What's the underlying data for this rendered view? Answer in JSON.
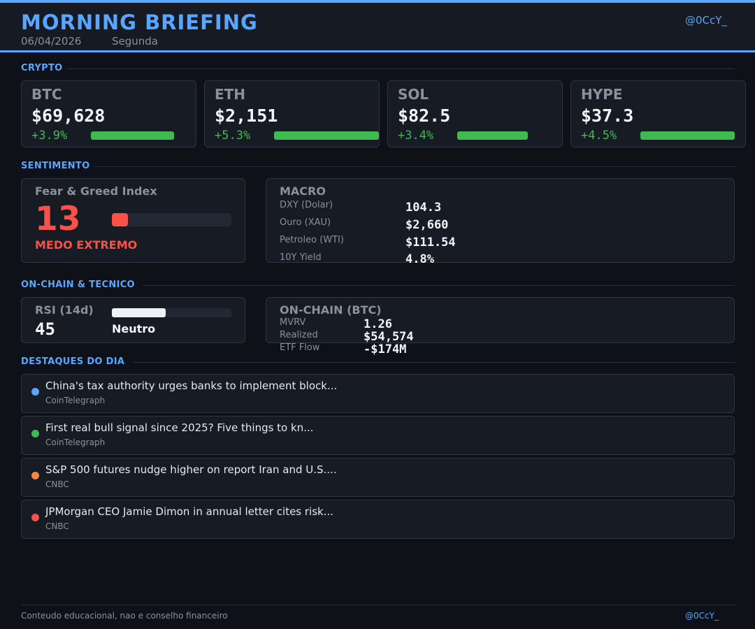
{
  "header": {
    "title": "MORNING BRIEFING",
    "date": "06/04/2026",
    "weekday": "Segunda",
    "handle": "@0CcY_",
    "accent_color": "#58a6ff"
  },
  "crypto": {
    "section_title": "CRYPTO",
    "coins": [
      {
        "name": "BTC",
        "price": "$69,628",
        "change": "+3.9%",
        "change_pct": 3.9
      },
      {
        "name": "ETH",
        "price": "$2,151",
        "change": "+5.3%",
        "change_pct": 5.3
      },
      {
        "name": "SOL",
        "price": "$82.5",
        "change": "+3.4%",
        "change_pct": 3.4
      },
      {
        "name": "HYPE",
        "price": "$37.3",
        "change": "+4.5%",
        "change_pct": 4.5
      }
    ],
    "positive_color": "#3fb950"
  },
  "sentiment": {
    "section_title": "SENTIMENTO",
    "fear_greed": {
      "label": "Fear & Greed Index",
      "value": "13",
      "level": 0.13,
      "status": "MEDO EXTREMO",
      "color": "#f85149"
    },
    "macro": {
      "title": "MACRO",
      "items": [
        {
          "label": "DXY (Dolar)",
          "value": "104.3"
        },
        {
          "label": "Ouro (XAU)",
          "value": "$2,660"
        },
        {
          "label": "Petroleo (WTI)",
          "value": "$111.54"
        },
        {
          "label": "10Y Yield",
          "value": "4.8%"
        }
      ]
    }
  },
  "onchain_technical": {
    "section_title": "ON-CHAIN & TECNICO",
    "rsi": {
      "label": "RSI (14d)",
      "value": "45",
      "level": 0.45,
      "status": "Neutro"
    },
    "onchain": {
      "title": "ON-CHAIN (BTC)",
      "items": [
        {
          "label": "MVRV",
          "value": "1.26"
        },
        {
          "label": "Realized",
          "value": "$54,574"
        },
        {
          "label": "ETF Flow",
          "value": "-$174M"
        }
      ]
    }
  },
  "highlights": {
    "section_title": "DESTAQUES DO DIA",
    "items": [
      {
        "title": "China's tax authority urges banks to implement block...",
        "source": "CoinTelegraph",
        "dot_color": "#58a6ff"
      },
      {
        "title": "First real bull signal since 2025? Five things to kn...",
        "source": "CoinTelegraph",
        "dot_color": "#3fb950"
      },
      {
        "title": "S&P 500 futures nudge higher on report Iran and U.S....",
        "source": "CNBC",
        "dot_color": "#f0883e"
      },
      {
        "title": "JPMorgan CEO Jamie Dimon in annual letter cites risk...",
        "source": "CNBC",
        "dot_color": "#f85149"
      }
    ]
  },
  "footer": {
    "disclaimer": "Conteudo educacional, nao e conselho financeiro",
    "handle": "@0CcY_"
  }
}
